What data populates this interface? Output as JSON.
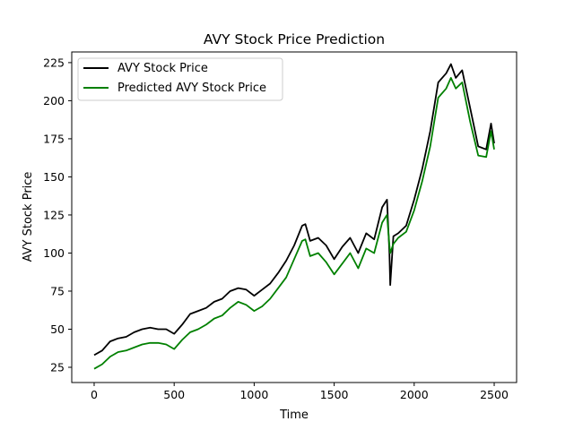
{
  "chart_data": {
    "type": "line",
    "title": "AVY Stock Price Prediction",
    "xlabel": "Time",
    "ylabel": "AVY Stock Price",
    "xlim": [
      -140,
      2640
    ],
    "ylim": [
      15,
      232
    ],
    "xticks": [
      0,
      500,
      1000,
      1500,
      2000,
      2500
    ],
    "yticks": [
      25,
      50,
      75,
      100,
      125,
      150,
      175,
      200,
      225
    ],
    "grid": false,
    "legend_position": "upper-left",
    "series": [
      {
        "name": "AVY Stock Price",
        "color": "#000000",
        "x": [
          0,
          50,
          100,
          150,
          200,
          250,
          300,
          350,
          400,
          450,
          500,
          550,
          600,
          650,
          700,
          750,
          800,
          850,
          900,
          950,
          1000,
          1050,
          1100,
          1150,
          1200,
          1250,
          1300,
          1320,
          1350,
          1400,
          1450,
          1500,
          1550,
          1600,
          1650,
          1700,
          1750,
          1800,
          1830,
          1845,
          1850,
          1870,
          1900,
          1950,
          2000,
          2050,
          2100,
          2150,
          2200,
          2230,
          2260,
          2300,
          2350,
          2400,
          2450,
          2480,
          2500
        ],
        "values": [
          33,
          36,
          42,
          44,
          45,
          48,
          50,
          51,
          50,
          50,
          47,
          53,
          60,
          62,
          64,
          68,
          70,
          75,
          77,
          76,
          72,
          76,
          80,
          87,
          95,
          105,
          118,
          119,
          108,
          110,
          105,
          96,
          104,
          110,
          100,
          113,
          109,
          130,
          135,
          100,
          79,
          111,
          113,
          118,
          135,
          155,
          180,
          212,
          218,
          224,
          215,
          220,
          195,
          170,
          168,
          185,
          172
        ]
      },
      {
        "name": "Predicted AVY Stock Price",
        "color": "#008000",
        "x": [
          0,
          50,
          100,
          150,
          200,
          250,
          300,
          350,
          400,
          450,
          500,
          550,
          600,
          650,
          700,
          750,
          800,
          850,
          900,
          950,
          1000,
          1050,
          1100,
          1150,
          1200,
          1250,
          1300,
          1320,
          1350,
          1400,
          1450,
          1500,
          1550,
          1600,
          1650,
          1700,
          1750,
          1800,
          1830,
          1845,
          1850,
          1870,
          1900,
          1950,
          2000,
          2050,
          2100,
          2150,
          2200,
          2230,
          2260,
          2300,
          2350,
          2400,
          2450,
          2480,
          2500
        ],
        "values": [
          24,
          27,
          32,
          35,
          36,
          38,
          40,
          41,
          41,
          40,
          37,
          43,
          48,
          50,
          53,
          57,
          59,
          64,
          68,
          66,
          62,
          65,
          70,
          77,
          84,
          96,
          108,
          109,
          98,
          100,
          94,
          86,
          93,
          100,
          90,
          103,
          100,
          120,
          125,
          105,
          100,
          106,
          110,
          114,
          128,
          147,
          170,
          202,
          208,
          215,
          208,
          212,
          186,
          164,
          163,
          180,
          168
        ]
      }
    ]
  }
}
